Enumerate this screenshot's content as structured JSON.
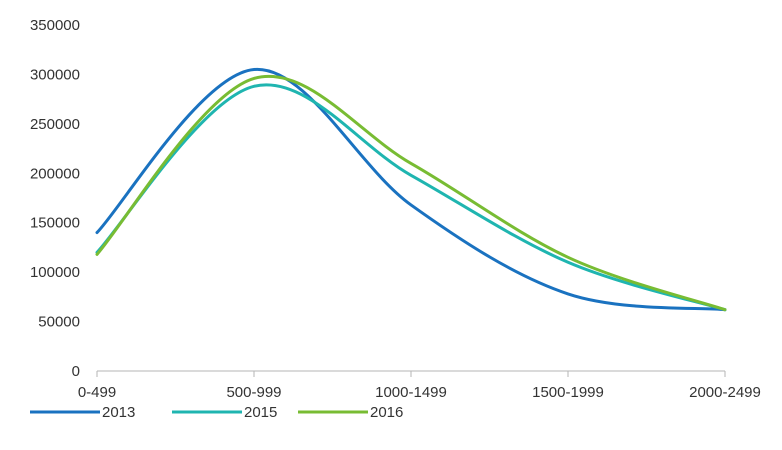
{
  "chart_data": {
    "type": "line",
    "categories": [
      "0-499",
      "500-999",
      "1000-1499",
      "1500-1999",
      "2000-2499"
    ],
    "series": [
      {
        "name": "2013",
        "values": [
          140000,
          305000,
          168000,
          78000,
          62000
        ],
        "color": "#1a72c0"
      },
      {
        "name": "2015",
        "values": [
          120000,
          288000,
          198000,
          110000,
          62000
        ],
        "color": "#1fb5b0"
      },
      {
        "name": "2016",
        "values": [
          118000,
          296000,
          210000,
          115000,
          62000
        ],
        "color": "#78bc33"
      }
    ],
    "y_ticks": [
      "0",
      "50000",
      "100000",
      "150000",
      "200000",
      "250000",
      "300000",
      "350000"
    ],
    "ylim": [
      0,
      350000
    ],
    "smooth": true,
    "grid": false,
    "legend_position": "bottom-left"
  }
}
